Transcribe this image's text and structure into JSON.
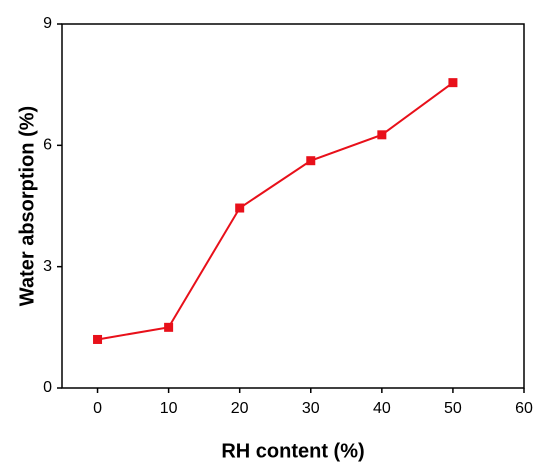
{
  "chart_data": {
    "type": "line",
    "x_label": "RH content (%)",
    "y_label": "Water absorption (%)",
    "x": [
      0,
      10,
      20,
      30,
      40,
      50
    ],
    "series": [
      {
        "name": "Water absorption",
        "color": "#e8101a",
        "values": [
          1.2,
          1.5,
          4.45,
          5.62,
          6.26,
          7.55
        ]
      }
    ],
    "xlim": [
      -5,
      60
    ],
    "xticks": [
      0,
      10,
      20,
      30,
      40,
      50,
      60
    ],
    "ylim": [
      0,
      9
    ],
    "yticks": [
      0,
      3,
      6,
      9
    ],
    "grid": false,
    "legend": false
  }
}
